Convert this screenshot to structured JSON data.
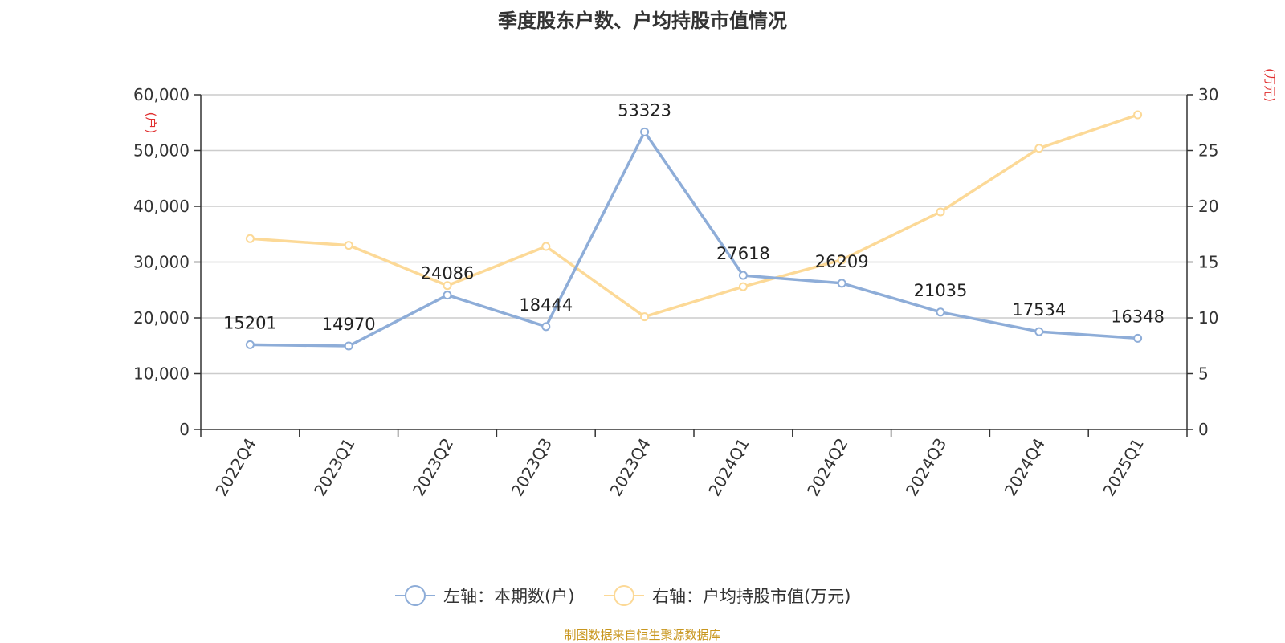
{
  "title": "季度股东户数、户均持股市值情况",
  "footer": "制图数据来自恒生聚源数据库",
  "chart_data": {
    "type": "line",
    "title": "季度股东户数、户均持股市值情况",
    "categories": [
      "2022Q4",
      "2023Q1",
      "2023Q2",
      "2023Q3",
      "2023Q4",
      "2024Q1",
      "2024Q2",
      "2024Q3",
      "2024Q4",
      "2025Q1"
    ],
    "left_axis": {
      "unit": "(户)",
      "ylim": [
        0,
        60000
      ],
      "ticks": [
        "0",
        "10,000",
        "20,000",
        "30,000",
        "40,000",
        "50,000",
        "60,000"
      ]
    },
    "right_axis": {
      "unit": "(万元)",
      "ylim": [
        0,
        30
      ],
      "ticks": [
        "0",
        "5",
        "10",
        "15",
        "20",
        "25",
        "30"
      ]
    },
    "series": [
      {
        "name": "左轴：本期数(户)",
        "axis": "left",
        "color": "#8eadd8",
        "values": [
          15201,
          14970,
          24086,
          18444,
          53323,
          27618,
          26209,
          21035,
          17534,
          16348
        ],
        "labels": [
          "15201",
          "14970",
          "24086",
          "18444",
          "53323",
          "27618",
          "26209",
          "21035",
          "17534",
          "16348"
        ]
      },
      {
        "name": "右轴：户均持股市值(万元)",
        "axis": "right",
        "color": "#fcd997",
        "values": [
          17.1,
          16.5,
          12.9,
          16.4,
          10.1,
          12.8,
          15.2,
          19.5,
          25.2,
          28.2
        ]
      }
    ],
    "grid": true,
    "legend_position": "bottom"
  }
}
